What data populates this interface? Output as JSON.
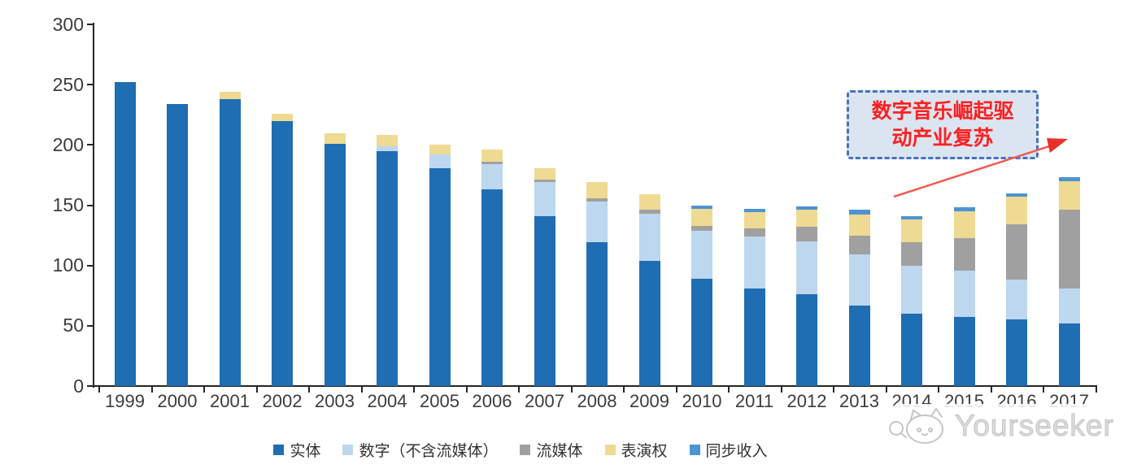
{
  "watermark": {
    "brand": "Yourseeker",
    "logo": "cat-doodle-icon"
  },
  "annotation": {
    "line1": "数字音乐崛起驱",
    "line2": "动产业复苏",
    "fill_color": "#DBE5F1",
    "border_color": "#4472C4",
    "text_color": "#FF2020",
    "arrow_color": "#F15B52"
  },
  "chart_data": {
    "type": "bar",
    "stacked": true,
    "title": "",
    "xlabel": "",
    "ylabel": "",
    "ylim": [
      0,
      300
    ],
    "yticks": [
      0,
      50,
      100,
      150,
      200,
      250,
      300
    ],
    "grid": false,
    "legend_position": "bottom",
    "categories": [
      "1999",
      "2000",
      "2001",
      "2002",
      "2003",
      "2004",
      "2005",
      "2006",
      "2007",
      "2008",
      "2009",
      "2010",
      "2011",
      "2012",
      "2013",
      "2014",
      "2015",
      "2016",
      "2017"
    ],
    "series": [
      {
        "name": "实体",
        "color": "#1F6DB2",
        "values": [
          252,
          234,
          238,
          220,
          201,
          195,
          181,
          163,
          141,
          119,
          104,
          89,
          81,
          76,
          67,
          60,
          57,
          55,
          52
        ]
      },
      {
        "name": "数字（不含流媒体）",
        "color": "#BDD7EE",
        "values": [
          0,
          0,
          0,
          0,
          0,
          4,
          11,
          21,
          28,
          34,
          39,
          40,
          43,
          44,
          42,
          40,
          39,
          33,
          29
        ]
      },
      {
        "name": "流媒体",
        "color": "#A0A0A0",
        "values": [
          0,
          0,
          0,
          0,
          0,
          0,
          0,
          2,
          2,
          3,
          3,
          4,
          7,
          12,
          16,
          19,
          27,
          46,
          65
        ]
      },
      {
        "name": "表演权",
        "color": "#EEDA92",
        "values": [
          0,
          0,
          6,
          6,
          9,
          9,
          8,
          10,
          10,
          13,
          13,
          14,
          13,
          14,
          17,
          19,
          22,
          23,
          24
        ]
      },
      {
        "name": "同步收入",
        "color": "#4E93D3",
        "values": [
          0,
          0,
          0,
          0,
          0,
          0,
          0,
          0,
          0,
          0,
          0,
          3,
          3,
          3,
          4,
          3,
          3,
          3,
          3
        ]
      }
    ],
    "totals": [
      252,
      234,
      244,
      226,
      210,
      208,
      200,
      196,
      181,
      169,
      159,
      150,
      147,
      149,
      146,
      141,
      148,
      160,
      173
    ]
  },
  "axis_color": "#262626"
}
